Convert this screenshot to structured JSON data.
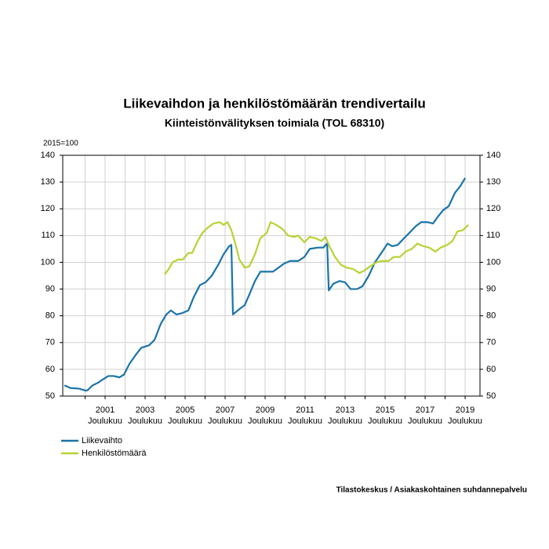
{
  "chart_data": {
    "type": "line",
    "title": "Liikevaihdon ja henkilöstömäärän trendivertailu",
    "subtitle": "Kiinteistönvälityksen toimiala (TOL 68310)",
    "y_unit_label": "2015=100",
    "source": "Tilastokeskus / Asiakaskohtainen suhdannepalvelu",
    "xlim": [
      1999.8,
      2020.66
    ],
    "xticks": [
      {
        "value": 2001.917,
        "label": "2001"
      },
      {
        "value": 2003.917,
        "label": "2003"
      },
      {
        "value": 2005.917,
        "label": "2005"
      },
      {
        "value": 2007.917,
        "label": "2007"
      },
      {
        "value": 2009.917,
        "label": "2009"
      },
      {
        "value": 2011.917,
        "label": "2011"
      },
      {
        "value": 2013.917,
        "label": "2013"
      },
      {
        "value": 2015.917,
        "label": "2015"
      },
      {
        "value": 2017.917,
        "label": "2017"
      },
      {
        "value": 2019.917,
        "label": "2019"
      }
    ],
    "xtick_sublabel": "Joulukuu",
    "xminor": [
      2000.917,
      2002.917,
      2004.917,
      2006.917,
      2008.917,
      2010.917,
      2012.917,
      2014.917,
      2016.917,
      2018.917
    ],
    "ylim": [
      50,
      140
    ],
    "yticks": [
      50,
      60,
      70,
      80,
      90,
      100,
      110,
      120,
      130,
      140
    ],
    "y2lim": [
      50,
      140
    ],
    "y2ticks": [
      50,
      60,
      70,
      80,
      90,
      100,
      110,
      120,
      130,
      140
    ],
    "grid": true,
    "series": [
      {
        "name": "Liikevaihto",
        "color": "#1a73a8",
        "x": [
          1999.88,
          2000.19,
          2000.59,
          2000.98,
          2001.06,
          2001.29,
          2001.57,
          2001.76,
          2002.08,
          2002.35,
          2002.63,
          2002.86,
          2003.13,
          2003.41,
          2003.72,
          2004.12,
          2004.39,
          2004.7,
          2004.98,
          2005.21,
          2005.49,
          2005.76,
          2006.08,
          2006.35,
          2006.66,
          2006.94,
          2007.25,
          2007.57,
          2007.84,
          2008.12,
          2008.23,
          2008.31,
          2008.63,
          2008.9,
          2009.13,
          2009.41,
          2009.68,
          2010.0,
          2010.31,
          2010.59,
          2010.86,
          2011.17,
          2011.57,
          2011.88,
          2012.15,
          2012.55,
          2012.82,
          2013.02,
          2013.1,
          2013.33,
          2013.64,
          2013.92,
          2014.19,
          2014.51,
          2014.78,
          2015.1,
          2015.41,
          2015.73,
          2016.04,
          2016.27,
          2016.55,
          2016.86,
          2017.13,
          2017.45,
          2017.72,
          2018.04,
          2018.31,
          2018.55,
          2018.82,
          2019.1,
          2019.41,
          2019.68,
          2019.92
        ],
        "values": [
          54,
          53,
          52.8,
          52,
          52.3,
          54,
          55,
          56,
          57.5,
          57.5,
          57,
          58,
          62,
          65,
          68,
          69,
          71,
          77,
          80.5,
          82,
          80.5,
          81,
          82,
          87,
          91.5,
          92.5,
          95,
          99,
          103,
          106,
          106.5,
          80.5,
          82.5,
          84,
          88,
          93,
          96.5,
          96.5,
          96.5,
          98,
          99.5,
          100.5,
          100.5,
          102,
          105,
          105.5,
          105.5,
          107,
          89.5,
          92,
          93,
          92.5,
          90,
          90,
          91,
          95,
          100,
          103.5,
          107,
          106,
          106.5,
          109,
          111,
          113.5,
          115,
          115,
          114.5,
          117,
          119.5,
          121,
          126,
          128.5,
          131.5
        ]
      },
      {
        "name": "Henkilöstömäärä",
        "color": "#b5d334",
        "x": [
          2004.9,
          2005.1,
          2005.29,
          2005.57,
          2005.8,
          2006.08,
          2006.27,
          2006.55,
          2006.78,
          2007.06,
          2007.33,
          2007.65,
          2007.84,
          2008.04,
          2008.23,
          2008.43,
          2008.63,
          2008.9,
          2009.13,
          2009.41,
          2009.68,
          2010.0,
          2010.19,
          2010.47,
          2010.78,
          2011.06,
          2011.37,
          2011.57,
          2011.88,
          2012.15,
          2012.43,
          2012.74,
          2012.94,
          2013.13,
          2013.41,
          2013.72,
          2014.0,
          2014.31,
          2014.63,
          2014.9,
          2015.17,
          2015.49,
          2015.76,
          2016.08,
          2016.35,
          2016.66,
          2016.94,
          2017.25,
          2017.53,
          2017.84,
          2018.12,
          2018.43,
          2018.7,
          2019.02,
          2019.29,
          2019.53,
          2019.8,
          2020.08
        ],
        "values": [
          95.5,
          97.5,
          100,
          101,
          101,
          103.5,
          103.5,
          108,
          111,
          113,
          114.5,
          115,
          114,
          115,
          112,
          107,
          101,
          98,
          98.5,
          103,
          109,
          111,
          115,
          114,
          112.5,
          110,
          109.5,
          110,
          107.5,
          109.5,
          109,
          108,
          109.5,
          106,
          102,
          99,
          98,
          97.5,
          96,
          97,
          98.5,
          100,
          100.5,
          100.5,
          102,
          102,
          104,
          105,
          107,
          106,
          105.5,
          104,
          105.5,
          106.5,
          108,
          111.5,
          112,
          114
        ]
      }
    ]
  }
}
